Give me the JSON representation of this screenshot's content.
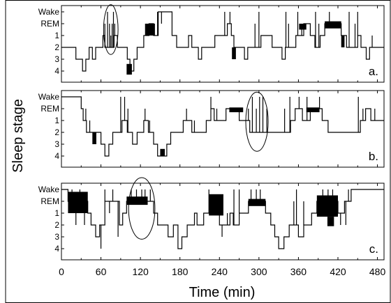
{
  "chart_data": {
    "type": "line",
    "subtype": "step hypnogram",
    "xlabel": "Time (min)",
    "ylabel": "Sleep stage",
    "xlim": [
      0,
      490
    ],
    "xticks": [
      0,
      60,
      120,
      180,
      240,
      300,
      360,
      420,
      480
    ],
    "stage_labels": [
      "Wake",
      "REM",
      "1",
      "2",
      "3",
      "4"
    ],
    "stage_levels": {
      "Wake": 0,
      "REM": 1,
      "1": 2,
      "2": 3,
      "3": 4,
      "4": 5
    },
    "panels": [
      {
        "label": "a.",
        "segments": [
          [
            0,
            3
          ],
          [
            18,
            3
          ],
          [
            22,
            4
          ],
          [
            32,
            5
          ],
          [
            37,
            4
          ],
          [
            42,
            3
          ],
          [
            47,
            4
          ],
          [
            52,
            3
          ],
          [
            63,
            2
          ],
          [
            66,
            3
          ],
          [
            80,
            2
          ],
          [
            85,
            3
          ],
          [
            100,
            4
          ],
          [
            104,
            5
          ],
          [
            110,
            4
          ],
          [
            115,
            3
          ],
          [
            125,
            2
          ],
          [
            133,
            1
          ],
          [
            140,
            2
          ],
          [
            147,
            0
          ],
          [
            168,
            2
          ],
          [
            175,
            3
          ],
          [
            193,
            2
          ],
          [
            198,
            3
          ],
          [
            208,
            4
          ],
          [
            213,
            3
          ],
          [
            233,
            2
          ],
          [
            252,
            1
          ],
          [
            258,
            2
          ],
          [
            262,
            3
          ],
          [
            278,
            4
          ],
          [
            283,
            3
          ],
          [
            303,
            2
          ],
          [
            320,
            3
          ],
          [
            335,
            4
          ],
          [
            340,
            3
          ],
          [
            356,
            2
          ],
          [
            368,
            1
          ],
          [
            378,
            2
          ],
          [
            385,
            3
          ],
          [
            393,
            2
          ],
          [
            400,
            1
          ],
          [
            425,
            2
          ],
          [
            433,
            3
          ],
          [
            450,
            2
          ],
          [
            455,
            3
          ],
          [
            463,
            4
          ],
          [
            468,
            3
          ],
          [
            490,
            3
          ]
        ],
        "spikes": [
          [
            66,
            1
          ],
          [
            70,
            0
          ],
          [
            73,
            1
          ],
          [
            75,
            2
          ],
          [
            77,
            1
          ],
          [
            79,
            0
          ],
          [
            81,
            1
          ],
          [
            146,
            0
          ],
          [
            152,
            1
          ],
          [
            248,
            0
          ],
          [
            252,
            1
          ],
          [
            256,
            0
          ],
          [
            294,
            1
          ],
          [
            300,
            0
          ],
          [
            341,
            0
          ],
          [
            345,
            1
          ],
          [
            359,
            0
          ],
          [
            365,
            1
          ],
          [
            386,
            0
          ],
          [
            391,
            1
          ],
          [
            407,
            0
          ],
          [
            418,
            1
          ],
          [
            437,
            0
          ],
          [
            446,
            1
          ],
          [
            450,
            0
          ],
          [
            472,
            2
          ]
        ],
        "bands": [
          [
            127,
            142,
            1,
            2
          ],
          [
            361,
            372,
            1,
            1.5
          ],
          [
            400,
            425,
            0.8,
            1.4
          ],
          [
            425,
            430,
            2,
            3
          ],
          [
            99,
            107,
            4.4,
            5.3
          ],
          [
            259,
            265,
            3,
            4
          ]
        ],
        "ellipse": {
          "x": 75,
          "stage": 1.5,
          "rx": 11,
          "ry": 2.1
        }
      },
      {
        "label": "b.",
        "segments": [
          [
            0,
            0
          ],
          [
            28,
            0
          ],
          [
            30,
            1
          ],
          [
            33,
            2
          ],
          [
            38,
            3
          ],
          [
            55,
            3
          ],
          [
            60,
            4
          ],
          [
            66,
            5
          ],
          [
            72,
            4
          ],
          [
            78,
            3
          ],
          [
            92,
            2
          ],
          [
            100,
            3
          ],
          [
            108,
            4
          ],
          [
            115,
            3
          ],
          [
            125,
            2
          ],
          [
            132,
            3
          ],
          [
            140,
            4
          ],
          [
            146,
            5
          ],
          [
            160,
            4
          ],
          [
            166,
            3
          ],
          [
            185,
            2
          ],
          [
            198,
            3
          ],
          [
            220,
            2
          ],
          [
            227,
            1
          ],
          [
            232,
            2
          ],
          [
            250,
            1
          ],
          [
            270,
            2
          ],
          [
            286,
            3
          ],
          [
            348,
            2
          ],
          [
            355,
            1
          ],
          [
            366,
            2
          ],
          [
            378,
            1
          ],
          [
            396,
            2
          ],
          [
            405,
            3
          ],
          [
            454,
            2
          ],
          [
            462,
            1
          ],
          [
            470,
            2
          ],
          [
            490,
            2
          ]
        ],
        "spikes": [
          [
            37,
            1
          ],
          [
            43,
            2
          ],
          [
            90,
            0
          ],
          [
            96,
            0
          ],
          [
            101,
            1
          ],
          [
            127,
            1
          ],
          [
            134,
            2
          ],
          [
            190,
            1
          ],
          [
            202,
            2
          ],
          [
            227,
            0
          ],
          [
            236,
            1
          ],
          [
            284,
            1
          ],
          [
            290,
            0
          ],
          [
            296,
            1
          ],
          [
            301,
            0
          ],
          [
            306,
            0
          ],
          [
            312,
            1
          ],
          [
            339,
            1
          ],
          [
            347,
            0
          ],
          [
            357,
            1
          ],
          [
            361,
            0
          ],
          [
            373,
            0
          ],
          [
            385,
            1
          ],
          [
            392,
            0
          ],
          [
            451,
            0
          ],
          [
            458,
            1
          ],
          [
            476,
            1
          ]
        ],
        "bands": [
          [
            255,
            276,
            0.9,
            1.3
          ],
          [
            372,
            392,
            0.9,
            1.3
          ],
          [
            47,
            53,
            3,
            4
          ],
          [
            150,
            157,
            4.4,
            5
          ]
        ],
        "ellipse": {
          "x": 297,
          "stage": 2.1,
          "rx": 17,
          "ry": 2.5
        }
      },
      {
        "label": "c.",
        "segments": [
          [
            0,
            0
          ],
          [
            10,
            1
          ],
          [
            40,
            2
          ],
          [
            45,
            3
          ],
          [
            52,
            4
          ],
          [
            58,
            3
          ],
          [
            66,
            1
          ],
          [
            88,
            3
          ],
          [
            93,
            2
          ],
          [
            99,
            1
          ],
          [
            131,
            1
          ],
          [
            140,
            2
          ],
          [
            146,
            3
          ],
          [
            162,
            4
          ],
          [
            170,
            3
          ],
          [
            177,
            5
          ],
          [
            183,
            4
          ],
          [
            191,
            3
          ],
          [
            202,
            2
          ],
          [
            206,
            3
          ],
          [
            216,
            2
          ],
          [
            240,
            3
          ],
          [
            256,
            2
          ],
          [
            261,
            3
          ],
          [
            270,
            2
          ],
          [
            284,
            1
          ],
          [
            310,
            2
          ],
          [
            318,
            3
          ],
          [
            324,
            4
          ],
          [
            330,
            5
          ],
          [
            338,
            4
          ],
          [
            346,
            3
          ],
          [
            360,
            4
          ],
          [
            368,
            3
          ],
          [
            380,
            2
          ],
          [
            388,
            1
          ],
          [
            420,
            2
          ],
          [
            430,
            1
          ],
          [
            440,
            0
          ],
          [
            490,
            0
          ]
        ],
        "spikes": [
          [
            16,
            0
          ],
          [
            22,
            3
          ],
          [
            28,
            0
          ],
          [
            35,
            3
          ],
          [
            60,
            5
          ],
          [
            66,
            0
          ],
          [
            73,
            2
          ],
          [
            78,
            0
          ],
          [
            86,
            4
          ],
          [
            106,
            0
          ],
          [
            114,
            0
          ],
          [
            122,
            0
          ],
          [
            127,
            0
          ],
          [
            135,
            0
          ],
          [
            224,
            0
          ],
          [
            231,
            1
          ],
          [
            244,
            4
          ],
          [
            252,
            2
          ],
          [
            262,
            0
          ],
          [
            270,
            0
          ],
          [
            288,
            0
          ],
          [
            296,
            0
          ],
          [
            302,
            0
          ],
          [
            353,
            1
          ],
          [
            357,
            0
          ],
          [
            368,
            1
          ],
          [
            397,
            0
          ],
          [
            405,
            0
          ],
          [
            412,
            0
          ],
          [
            424,
            3
          ],
          [
            432,
            3
          ],
          [
            436,
            0
          ]
        ],
        "bands": [
          [
            10,
            40,
            0.2,
            2
          ],
          [
            99,
            131,
            0.6,
            1.3
          ],
          [
            224,
            246,
            0.4,
            2.2
          ],
          [
            284,
            310,
            0.8,
            1.4
          ],
          [
            388,
            420,
            0.5,
            2.3
          ],
          [
            404,
            414,
            2.3,
            3.1
          ]
        ],
        "ellipse": {
          "x": 122,
          "stage": 1.6,
          "rx": 20,
          "ry": 2.6
        }
      }
    ]
  }
}
